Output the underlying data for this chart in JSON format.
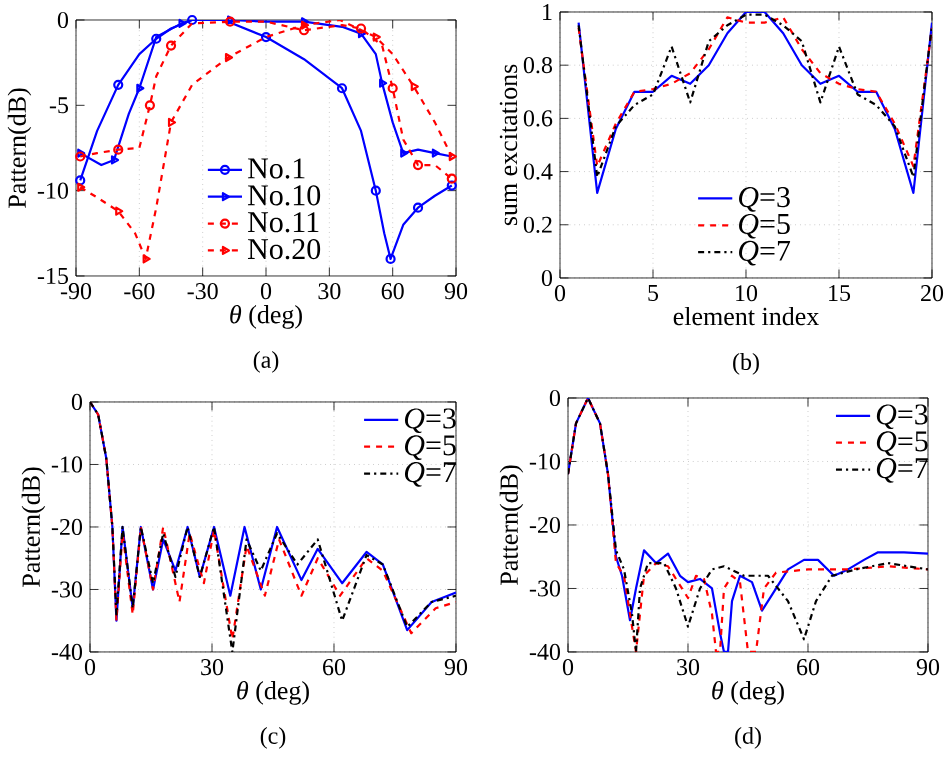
{
  "chart_data": [
    {
      "type": "line",
      "xlabel": "*θ* (deg)",
      "ylabel": "Pattern(dB)",
      "annotations": [
        "(a)"
      ],
      "xlim": [
        -90,
        90
      ],
      "ylim": [
        -15,
        0
      ],
      "xticks": [
        -90,
        -60,
        -30,
        0,
        30,
        60,
        90
      ],
      "yticks": [
        -15,
        -10,
        -5,
        0
      ],
      "grid": "x",
      "legend": "bottom",
      "series": [
        {
          "name": "No.1",
          "color": "#0000ff",
          "line_style": "solid",
          "marker": "circle",
          "x": [
            -88,
            -80,
            -70,
            -60,
            -52,
            -45,
            -35,
            -20,
            0,
            18,
            36,
            45,
            52,
            56,
            59,
            65,
            72,
            80,
            88
          ],
          "values": [
            -9.4,
            -6.5,
            -3.8,
            -2,
            -1.1,
            -0.5,
            0,
            0,
            -1,
            -2.3,
            -4,
            -6.5,
            -10,
            -12.5,
            -14,
            -12,
            -11,
            -10.3,
            -9.7
          ]
        },
        {
          "name": "No.10",
          "color": "#0000ff",
          "line_style": "solid",
          "marker": "triangle",
          "x": [
            -88,
            -78,
            -72,
            -65,
            -60,
            -52,
            -40,
            -35,
            -17,
            0,
            18,
            36,
            45,
            52,
            55,
            60,
            65,
            72,
            80,
            88
          ],
          "values": [
            -7.8,
            -8.5,
            -8.2,
            -5.5,
            -4,
            -1,
            -0.2,
            0,
            0,
            -0.1,
            -0.1,
            -0.4,
            -0.8,
            -2,
            -3.7,
            -6,
            -7.8,
            -7.6,
            -7.8,
            -8
          ]
        },
        {
          "name": "No.11",
          "color": "#ff0000",
          "line_style": "dashed",
          "marker": "circle",
          "x": [
            -88,
            -80,
            -70,
            -60,
            -55,
            -52,
            -45,
            -35,
            -17,
            0,
            18,
            36,
            45,
            55,
            60,
            65,
            72,
            80,
            88
          ],
          "values": [
            -8,
            -7.8,
            -7.6,
            -7.5,
            -5,
            -3.3,
            -1.5,
            -0.2,
            -0.1,
            -0.1,
            -0.6,
            -0.3,
            -0.5,
            -1.5,
            -4,
            -7,
            -8.5,
            -8.5,
            -9.3
          ]
        },
        {
          "name": "No.20",
          "color": "#ff0000",
          "line_style": "dashed",
          "marker": "triangle",
          "x": [
            -88,
            -80,
            -70,
            -62,
            -57,
            -52,
            -45,
            -35,
            -18,
            0,
            18,
            35,
            52,
            60,
            70,
            80,
            88
          ],
          "values": [
            -9.8,
            -10.4,
            -11.2,
            -12.5,
            -14,
            -11,
            -6,
            -3.8,
            -2.2,
            -1,
            -0.3,
            0,
            -1,
            -2,
            -3.9,
            -6,
            -8
          ]
        }
      ]
    },
    {
      "type": "line",
      "xlabel": "element index",
      "ylabel": "sum excitations",
      "annotations": [
        "(b)"
      ],
      "xlim": [
        0,
        20
      ],
      "ylim": [
        0,
        1
      ],
      "xticks": [
        0,
        5,
        10,
        15,
        20
      ],
      "yticks": [
        0,
        0.2,
        0.4,
        0.6,
        0.8,
        1
      ],
      "grid": true,
      "legend": "bottom",
      "x": [
        1,
        2,
        3,
        4,
        5,
        6,
        7,
        8,
        9,
        10,
        11,
        12,
        13,
        14,
        15,
        16,
        17,
        18,
        19,
        20
      ],
      "series": [
        {
          "name": "*Q*=3",
          "color": "#0000ff",
          "line_style": "solid",
          "values": [
            0.96,
            0.32,
            0.56,
            0.7,
            0.7,
            0.76,
            0.73,
            0.8,
            0.92,
            1,
            1,
            0.92,
            0.8,
            0.73,
            0.76,
            0.7,
            0.7,
            0.56,
            0.32,
            0.96
          ]
        },
        {
          "name": "*Q*=5",
          "color": "#ff0000",
          "line_style": "dashed",
          "values": [
            0.94,
            0.42,
            0.58,
            0.7,
            0.71,
            0.73,
            0.77,
            0.86,
            0.98,
            0.96,
            0.96,
            0.98,
            0.86,
            0.77,
            0.73,
            0.71,
            0.7,
            0.58,
            0.42,
            0.94
          ]
        },
        {
          "name": "*Q*=7",
          "color": "#000000",
          "line_style": "dashdot",
          "values": [
            0.95,
            0.38,
            0.57,
            0.65,
            0.69,
            0.87,
            0.66,
            0.89,
            0.95,
            0.99,
            0.99,
            0.95,
            0.89,
            0.66,
            0.87,
            0.69,
            0.65,
            0.57,
            0.38,
            0.95
          ]
        }
      ]
    },
    {
      "type": "line",
      "xlabel": "*θ* (deg)",
      "ylabel": "Pattern(dB)",
      "annotations": [
        "(c)"
      ],
      "xlim": [
        0,
        90
      ],
      "ylim": [
        -40,
        0
      ],
      "xticks": [
        0,
        30,
        60,
        90
      ],
      "yticks": [
        -40,
        -30,
        -20,
        -10,
        0
      ],
      "grid": true,
      "legend": "top right",
      "series": [
        {
          "name": "*Q*=3",
          "color": "#0000ff",
          "line_style": "solid",
          "x": [
            0,
            2,
            4,
            5.5,
            6.5,
            8,
            10.5,
            12.5,
            15.5,
            18,
            21,
            24,
            27,
            30.5,
            34.5,
            38,
            42,
            46,
            52,
            56,
            62,
            68,
            72,
            78,
            84,
            90
          ],
          "values": [
            0,
            -2,
            -9,
            -20,
            -35,
            -20,
            -33,
            -20,
            -30,
            -22,
            -27,
            -20,
            -28,
            -20,
            -31,
            -20,
            -30,
            -20,
            -28.5,
            -23.5,
            -29,
            -24,
            -26,
            -36.5,
            -32,
            -30.5
          ]
        },
        {
          "name": "*Q*=5",
          "color": "#ff0000",
          "line_style": "dashed",
          "x": [
            0,
            2,
            4,
            5.5,
            6.5,
            8,
            10.5,
            12.5,
            15.5,
            18,
            22,
            24.5,
            28,
            30.5,
            35,
            38.5,
            43,
            46.5,
            52,
            56,
            61.5,
            68,
            72,
            79,
            85,
            90
          ],
          "values": [
            0,
            -2,
            -9,
            -20,
            -35,
            -21,
            -34,
            -20,
            -30,
            -20,
            -32,
            -21,
            -29,
            -20.5,
            -38,
            -23,
            -31,
            -22,
            -31,
            -25,
            -31,
            -25,
            -27,
            -37,
            -33,
            -32
          ]
        },
        {
          "name": "*Q*=7",
          "color": "#000000",
          "line_style": "dashdot",
          "x": [
            0,
            2,
            4,
            5.5,
            6.5,
            8,
            10.5,
            12.5,
            15.5,
            18,
            21,
            24,
            27,
            30.5,
            35,
            38.5,
            42,
            46,
            51,
            56,
            62,
            68,
            72,
            78,
            84,
            90
          ],
          "values": [
            0,
            -2,
            -9,
            -20,
            -34,
            -20,
            -33,
            -20,
            -29,
            -21,
            -28,
            -20,
            -28,
            -20,
            -40,
            -22,
            -27,
            -21,
            -26,
            -22,
            -35,
            -24.5,
            -26,
            -36,
            -32,
            -31
          ]
        }
      ]
    },
    {
      "type": "line",
      "xlabel": "*θ* (deg)",
      "ylabel": "Pattern(dB)",
      "annotations": [
        "(d)"
      ],
      "xlim": [
        0,
        90
      ],
      "ylim": [
        -40,
        0
      ],
      "xticks": [
        0,
        30,
        60,
        90
      ],
      "yticks": [
        -40,
        -30,
        -20,
        -10,
        0
      ],
      "grid": true,
      "legend": "top right",
      "series": [
        {
          "name": "*Q*=3",
          "color": "#0000ff",
          "line_style": "solid",
          "x": [
            0,
            2,
            5,
            8,
            10,
            12,
            13.5,
            15.5,
            17,
            19,
            22,
            25,
            28,
            30,
            33,
            36,
            38,
            39,
            40,
            41,
            43,
            46,
            48.5,
            51,
            55,
            59,
            62.5,
            66.5,
            70,
            74,
            77.5,
            84,
            90
          ],
          "values": [
            -12,
            -4,
            0,
            -4,
            -12,
            -25,
            -28,
            -35,
            -30,
            -24,
            -26,
            -24.5,
            -28,
            -29,
            -28.5,
            -30,
            -37,
            -40,
            -40,
            -32,
            -28,
            -29,
            -33.5,
            -31,
            -27,
            -25.5,
            -25.5,
            -28,
            -27,
            -25.5,
            -24.3,
            -24.3,
            -24.5
          ]
        },
        {
          "name": "*Q*=5",
          "color": "#ff0000",
          "line_style": "dashed",
          "x": [
            0,
            2,
            5,
            8,
            10,
            12,
            14,
            17,
            19,
            22,
            25,
            28,
            30,
            32,
            34,
            36,
            37,
            38,
            39,
            41,
            43,
            45,
            47,
            49,
            52,
            60,
            70,
            80,
            90
          ],
          "values": [
            -12,
            -4,
            0,
            -4,
            -12,
            -26,
            -28,
            -40,
            -28,
            -26,
            -26.5,
            -29.5,
            -31.5,
            -28,
            -28.5,
            -34,
            -40,
            -40,
            -30,
            -28,
            -29,
            -40,
            -40,
            -30,
            -27.5,
            -27,
            -27,
            -26.5,
            -27
          ]
        },
        {
          "name": "*Q*=7",
          "color": "#000000",
          "line_style": "dashdot",
          "x": [
            0,
            2,
            5,
            8,
            10,
            12,
            14,
            16,
            17,
            18,
            20,
            24,
            27,
            30,
            33,
            36,
            39,
            44,
            50,
            55,
            59,
            62,
            66,
            72,
            80,
            90
          ],
          "values": [
            -12,
            -4,
            0,
            -4,
            -12,
            -24,
            -27,
            -34,
            -40,
            -30,
            -26,
            -26,
            -30,
            -36,
            -30,
            -27,
            -26.5,
            -28,
            -28,
            -32,
            -38,
            -32,
            -28,
            -27,
            -26,
            -27
          ]
        }
      ]
    }
  ]
}
